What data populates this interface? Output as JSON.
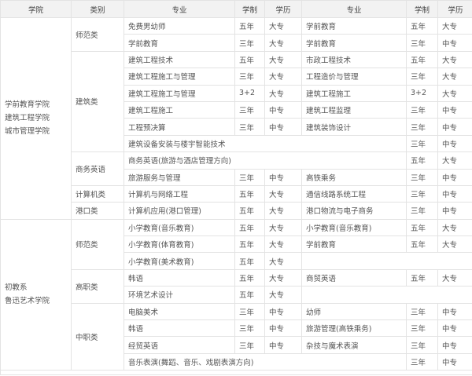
{
  "header": [
    "学院",
    "类别",
    "专业",
    "学制",
    "学历",
    "专业",
    "学制",
    "学历"
  ],
  "colleges": [
    {
      "names": [
        "学前教育学院",
        "建筑工程学院",
        "城市管理学院"
      ],
      "categories": [
        {
          "name": "师范类",
          "rows": [
            [
              "免费男幼师",
              "五年",
              "大专",
              "学前教育",
              "五年",
              "大专"
            ],
            [
              "学前教育",
              "三年",
              "大专",
              "学前教育",
              "三年",
              "中专"
            ]
          ]
        },
        {
          "name": "建筑类",
          "rows": [
            [
              "建筑工程技术",
              "五年",
              "大专",
              "市政工程技术",
              "五年",
              "大专"
            ],
            [
              "建筑工程施工与管理",
              "三年",
              "大专",
              "工程造价与管理",
              "三年",
              "大专"
            ],
            [
              "建筑工程施工与管理",
              "3+2",
              "大专",
              "建筑工程施工",
              "3+2",
              "大专"
            ],
            [
              "建筑工程施工",
              "三年",
              "中专",
              "建筑工程监理",
              "三年",
              "中专"
            ],
            [
              "工程预决算",
              "三年",
              "中专",
              "建筑装饰设计",
              "三年",
              "中专"
            ],
            [
              "建筑设备安装与楼宇智能技术",
              "三年",
              "中专"
            ]
          ]
        },
        {
          "name": "商务英语",
          "rows": [
            [
              "商务英语(旅游与酒店管理方向)",
              "五年",
              "大专"
            ],
            [
              "旅游服务与管理",
              "三年",
              "中专",
              "高铁乘务",
              "三年",
              "中专"
            ]
          ]
        },
        {
          "name": "计算机类",
          "rows": [
            [
              "计算机与网络工程",
              "五年",
              "大专",
              "通信线路系统工程",
              "三年",
              "中专"
            ]
          ]
        },
        {
          "name": "港口类",
          "rows": [
            [
              "计算机应用(港口管理)",
              "五年",
              "大专",
              "港口物流与电子商务",
              "三年",
              "中专"
            ]
          ]
        }
      ]
    },
    {
      "names": [
        "初教系",
        "鲁迅艺术学院"
      ],
      "categories": [
        {
          "name": "师范类",
          "rows": [
            [
              "小学教育(音乐教育)",
              "五年",
              "大专",
              "小学教育(音乐教育)",
              "五年",
              "大专"
            ],
            [
              "小学教育(体育教育)",
              "五年",
              "大专",
              "学前教育",
              "五年",
              "大专"
            ],
            [
              "小学教育(美术教育)",
              "五年",
              "大专",
              ""
            ]
          ]
        },
        {
          "name": "高职类",
          "rows": [
            [
              "韩语",
              "五年",
              "大专",
              "商贸英语",
              "五年",
              "大专"
            ],
            [
              "环境艺术设计",
              "五年",
              "大专",
              ""
            ]
          ]
        },
        {
          "name": "中职类",
          "rows": [
            [
              "电脑美术",
              "三年",
              "中专",
              "幼师",
              "三年",
              "中专"
            ],
            [
              "韩语",
              "三年",
              "中专",
              "旅游管理(高铁乘务)",
              "三年",
              "中专"
            ],
            [
              "经贸英语",
              "三年",
              "中专",
              "杂技与魔术表演",
              "三年",
              "中专"
            ],
            [
              "音乐表演(舞蹈、音乐、戏剧表演方向)",
              "三年",
              "中专"
            ]
          ]
        }
      ]
    }
  ]
}
